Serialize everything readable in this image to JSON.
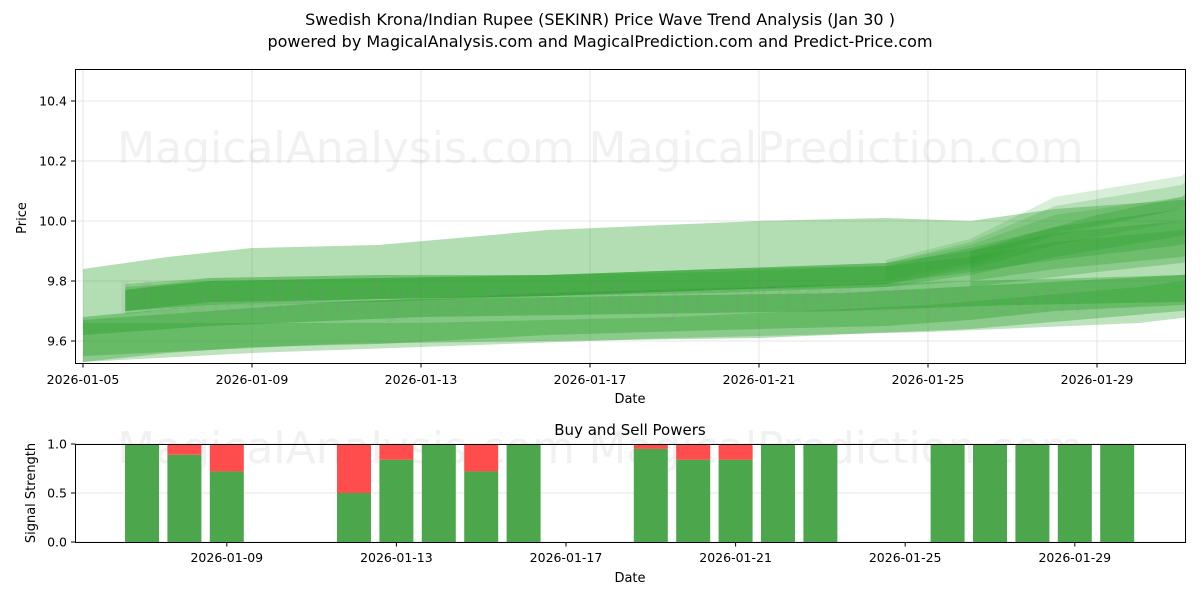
{
  "header": {
    "title": "Swedish Krona/Indian Rupee (SEKINR) Price Wave Trend Analysis (Jan 30 )",
    "subtitle": "powered by MagicalAnalysis.com and MagicalPrediction.com and Predict-Price.com"
  },
  "watermarks": [
    "MagicalAnalysis.com",
    "MagicalPrediction.com"
  ],
  "colors": {
    "band": "#2ca02c",
    "buy": "#4ca64c",
    "sell": "#ff4c4c",
    "grid": "#dddddd"
  },
  "chart_data": [
    {
      "type": "area",
      "title": "Price Wave Trend Analysis",
      "xlabel": "Date",
      "ylabel": "Price",
      "ylim": [
        9.53,
        10.51
      ],
      "xlim": [
        "2026-01-05",
        "2026-01-31"
      ],
      "grid": true,
      "x_ticks": [
        "2026-01-05",
        "2026-01-09",
        "2026-01-13",
        "2026-01-17",
        "2026-01-21",
        "2026-01-25",
        "2026-01-29"
      ],
      "y_ticks": [
        "9.6",
        "9.8",
        "10.0",
        "10.2",
        "10.4"
      ],
      "bands": [
        {
          "name": "outer-wide",
          "x": [
            0,
            2,
            4,
            7,
            11,
            16,
            19,
            21,
            23,
            26,
            28,
            30.7
          ],
          "upper": [
            9.84,
            9.88,
            9.91,
            9.92,
            9.97,
            10.0,
            10.01,
            10.0,
            10.04,
            10.07,
            10.04,
            10.09
          ],
          "lower": [
            9.53,
            9.56,
            9.58,
            9.59,
            9.62,
            9.64,
            9.65,
            9.67,
            9.7,
            9.72,
            9.76,
            9.84
          ]
        },
        {
          "name": "lower-wide",
          "x": [
            0,
            3,
            6,
            11,
            16,
            21,
            26,
            28,
            30.6
          ],
          "upper": [
            9.67,
            9.7,
            9.73,
            9.76,
            9.78,
            9.8,
            9.82,
            9.85,
            9.91
          ],
          "lower": [
            9.55,
            9.57,
            9.59,
            9.6,
            9.61,
            9.64,
            9.7,
            9.74,
            9.83
          ]
        },
        {
          "name": "lower-outer",
          "x": [
            0,
            4,
            8,
            14,
            20,
            25,
            28,
            30.7
          ],
          "upper": [
            9.66,
            9.66,
            9.66,
            9.68,
            9.72,
            9.78,
            9.84,
            9.88
          ],
          "lower": [
            9.53,
            9.56,
            9.58,
            9.61,
            9.63,
            9.66,
            9.71,
            9.78
          ]
        },
        {
          "name": "lower-thick",
          "x": [
            0,
            3,
            8,
            13,
            18,
            22,
            26,
            28,
            30.6
          ],
          "upper": [
            9.68,
            9.72,
            9.74,
            9.75,
            9.76,
            9.79,
            9.82,
            9.85,
            9.91
          ],
          "lower": [
            9.62,
            9.65,
            9.68,
            9.69,
            9.7,
            9.72,
            9.73,
            9.77,
            9.84
          ]
        },
        {
          "name": "main-1",
          "x": [
            1,
            3,
            7,
            11,
            15,
            19,
            21,
            23,
            26,
            28,
            30
          ],
          "upper": [
            9.79,
            9.81,
            9.82,
            9.82,
            9.84,
            9.85,
            9.88,
            9.93,
            9.97,
            10.05,
            10.24
          ],
          "lower": [
            9.7,
            9.73,
            9.74,
            9.75,
            9.77,
            9.78,
            9.8,
            9.84,
            9.88,
            9.96,
            10.14
          ]
        },
        {
          "name": "main-2",
          "x": [
            1,
            3,
            7,
            11,
            15,
            19,
            21,
            23,
            26,
            28,
            30
          ],
          "upper": [
            9.78,
            9.8,
            9.81,
            9.82,
            9.84,
            9.86,
            9.9,
            9.96,
            10.0,
            10.1,
            10.32
          ],
          "lower": [
            9.7,
            9.72,
            9.74,
            9.75,
            9.77,
            9.79,
            9.83,
            9.87,
            9.92,
            10.02,
            10.22
          ]
        },
        {
          "name": "main-3",
          "x": [
            1,
            3,
            7,
            11,
            15,
            19,
            21,
            23,
            26,
            28,
            30
          ],
          "upper": [
            9.77,
            9.8,
            9.81,
            9.82,
            9.83,
            9.85,
            9.91,
            9.98,
            10.04,
            10.13,
            10.28
          ],
          "lower": [
            9.69,
            9.72,
            9.73,
            9.75,
            9.76,
            9.78,
            9.82,
            9.88,
            9.95,
            10.04,
            10.18
          ]
        },
        {
          "name": "upper-1",
          "x": [
            1,
            3,
            7,
            11,
            15,
            19,
            21,
            23,
            26,
            27,
            28,
            29,
            30
          ],
          "upper": [
            9.77,
            9.81,
            9.82,
            9.82,
            9.84,
            9.86,
            9.92,
            10.02,
            10.08,
            10.2,
            10.28,
            10.4,
            10.45
          ],
          "lower": [
            9.7,
            9.73,
            9.74,
            9.75,
            9.77,
            9.79,
            9.84,
            9.92,
            10.0,
            10.1,
            10.18,
            10.3,
            10.37
          ]
        },
        {
          "name": "upper-2",
          "x": [
            1,
            3,
            7,
            11,
            15,
            19,
            21,
            23,
            26,
            27,
            28,
            29,
            30
          ],
          "upper": [
            9.77,
            9.8,
            9.81,
            9.82,
            9.84,
            9.86,
            9.93,
            10.05,
            10.12,
            10.24,
            10.3,
            10.42,
            10.5
          ],
          "lower": [
            9.7,
            9.72,
            9.74,
            9.75,
            9.77,
            9.79,
            9.85,
            9.95,
            10.04,
            10.14,
            10.22,
            10.34,
            10.41
          ]
        },
        {
          "name": "upper-3",
          "x": [
            19,
            21,
            23,
            26,
            27,
            28,
            29,
            30.3
          ],
          "upper": [
            9.87,
            9.94,
            10.08,
            10.15,
            10.26,
            10.31,
            10.44,
            10.48
          ],
          "lower": [
            9.8,
            9.86,
            9.96,
            10.04,
            10.14,
            10.22,
            10.34,
            10.4
          ]
        },
        {
          "name": "right-wide",
          "x": [
            21,
            24,
            26,
            28,
            30,
            31
          ],
          "upper": [
            9.9,
            10.02,
            10.08,
            10.18,
            10.3,
            10.35
          ],
          "lower": [
            9.78,
            9.83,
            9.86,
            9.92,
            10.06,
            10.14
          ]
        }
      ]
    },
    {
      "type": "bar",
      "title": "Buy and Sell Powers",
      "xlabel": "Date",
      "ylabel": "Signal Strength",
      "ylim": [
        0,
        1
      ],
      "y_ticks": [
        "0.0",
        "0.5",
        "1.0"
      ],
      "x_ticks": [
        "2026-01-09",
        "2026-01-13",
        "2026-01-17",
        "2026-01-21",
        "2026-01-25",
        "2026-01-29"
      ],
      "categories": [
        "2026-01-07",
        "2026-01-08",
        "2026-01-09",
        "2026-01-12",
        "2026-01-13",
        "2026-01-14",
        "2026-01-15",
        "2026-01-16",
        "2026-01-19",
        "2026-01-20",
        "2026-01-21",
        "2026-01-22",
        "2026-01-23",
        "2026-01-26",
        "2026-01-27",
        "2026-01-28",
        "2026-01-29",
        "2026-01-30"
      ],
      "series": [
        {
          "name": "Buy",
          "values": [
            1.0,
            0.89,
            0.72,
            0.5,
            0.84,
            1.0,
            0.72,
            1.0,
            0.95,
            0.84,
            0.84,
            1.0,
            1.0,
            1.0,
            1.0,
            1.0,
            1.0,
            1.0
          ]
        },
        {
          "name": "Sell",
          "values": [
            0.0,
            0.11,
            0.28,
            0.5,
            0.16,
            0.0,
            0.28,
            0.0,
            0.05,
            0.16,
            0.16,
            0.0,
            0.0,
            0.0,
            0.0,
            0.0,
            0.0,
            0.0
          ]
        }
      ]
    }
  ]
}
